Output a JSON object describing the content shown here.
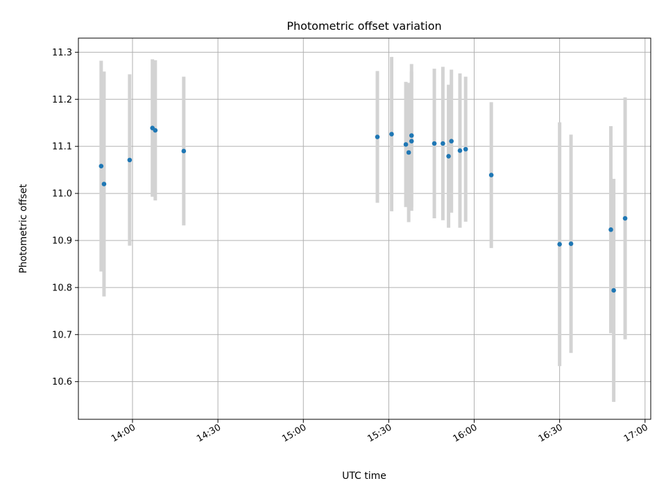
{
  "chart_data": {
    "type": "scatter",
    "title": "Photometric offset variation",
    "xlabel": "UTC time",
    "ylabel": "Photometric offset",
    "x_is_time": true,
    "xlim": [
      "13:41",
      "17:02"
    ],
    "ylim": [
      10.52,
      11.33
    ],
    "grid": true,
    "x_ticks": [
      "14:00",
      "14:30",
      "15:00",
      "15:30",
      "16:00",
      "16:30",
      "17:00"
    ],
    "y_ticks": [
      "10.6",
      "10.7",
      "10.8",
      "10.9",
      "11.0",
      "11.1",
      "11.2",
      "11.3"
    ],
    "colors": {
      "point": "#1f77b4",
      "errorbar": "#d3d3d3",
      "grid": "#b0b0b0"
    },
    "points": [
      {
        "x": "13:49",
        "y": 11.058,
        "err": 0.224
      },
      {
        "x": "13:50",
        "y": 11.02,
        "err": 0.239
      },
      {
        "x": "13:59",
        "y": 11.071,
        "err": 0.182
      },
      {
        "x": "14:07",
        "y": 11.139,
        "err": 0.146
      },
      {
        "x": "14:08",
        "y": 11.134,
        "err": 0.149
      },
      {
        "x": "14:18",
        "y": 11.09,
        "err": 0.158
      },
      {
        "x": "15:26",
        "y": 11.12,
        "err": 0.14
      },
      {
        "x": "15:31",
        "y": 11.126,
        "err": 0.164
      },
      {
        "x": "15:36",
        "y": 11.104,
        "err": 0.133
      },
      {
        "x": "15:37",
        "y": 11.087,
        "err": 0.148
      },
      {
        "x": "15:38",
        "y": 11.123,
        "err": 0.152
      },
      {
        "x": "15:38",
        "y": 11.111,
        "err": 0.148
      },
      {
        "x": "15:46",
        "y": 11.106,
        "err": 0.159
      },
      {
        "x": "15:49",
        "y": 11.106,
        "err": 0.163
      },
      {
        "x": "15:51",
        "y": 11.079,
        "err": 0.152
      },
      {
        "x": "15:52",
        "y": 11.111,
        "err": 0.152
      },
      {
        "x": "15:55",
        "y": 11.091,
        "err": 0.164
      },
      {
        "x": "15:57",
        "y": 11.094,
        "err": 0.154
      },
      {
        "x": "16:06",
        "y": 11.039,
        "err": 0.155
      },
      {
        "x": "16:30",
        "y": 10.892,
        "err": 0.259
      },
      {
        "x": "16:34",
        "y": 10.893,
        "err": 0.232
      },
      {
        "x": "16:48",
        "y": 10.923,
        "err": 0.22
      },
      {
        "x": "16:49",
        "y": 10.794,
        "err": 0.237
      },
      {
        "x": "16:53",
        "y": 10.947,
        "err": 0.257
      }
    ]
  }
}
